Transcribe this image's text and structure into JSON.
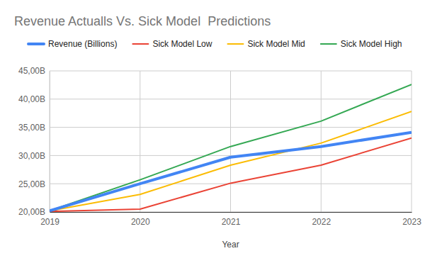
{
  "chart_data": {
    "type": "line",
    "title": "Revenue Actualls Vs. Sick Model  Predictions",
    "x_label": "Year",
    "x": [
      2019,
      2020,
      2021,
      2022,
      2023
    ],
    "xlim": [
      2019,
      2023
    ],
    "xticks": [
      2019,
      2020,
      2021,
      2022,
      2023
    ],
    "ylim": [
      20,
      45
    ],
    "yticks": [
      {
        "value": 20,
        "label": "20,00B"
      },
      {
        "value": 25,
        "label": "25,00B"
      },
      {
        "value": 30,
        "label": "30,00B"
      },
      {
        "value": 35,
        "label": "35,00B"
      },
      {
        "value": 40,
        "label": "40,00B"
      },
      {
        "value": 45,
        "label": "45,00B"
      }
    ],
    "grid": true,
    "legend": "top",
    "series": [
      {
        "name": "Revenue (Billions)",
        "color": "#4285f4",
        "values": [
          20.2,
          25.0,
          29.7,
          31.6,
          34.1
        ]
      },
      {
        "name": "Sick Model Low",
        "color": "#ea4335",
        "values": [
          20.1,
          20.5,
          25.1,
          28.3,
          33.1
        ]
      },
      {
        "name": "Sick Model Mid",
        "color": "#fbbc04",
        "values": [
          20.2,
          23.1,
          28.3,
          32.2,
          37.8
        ]
      },
      {
        "name": "Sick Model High",
        "color": "#34a853",
        "values": [
          20.2,
          25.7,
          31.6,
          36.1,
          42.6
        ]
      }
    ]
  }
}
